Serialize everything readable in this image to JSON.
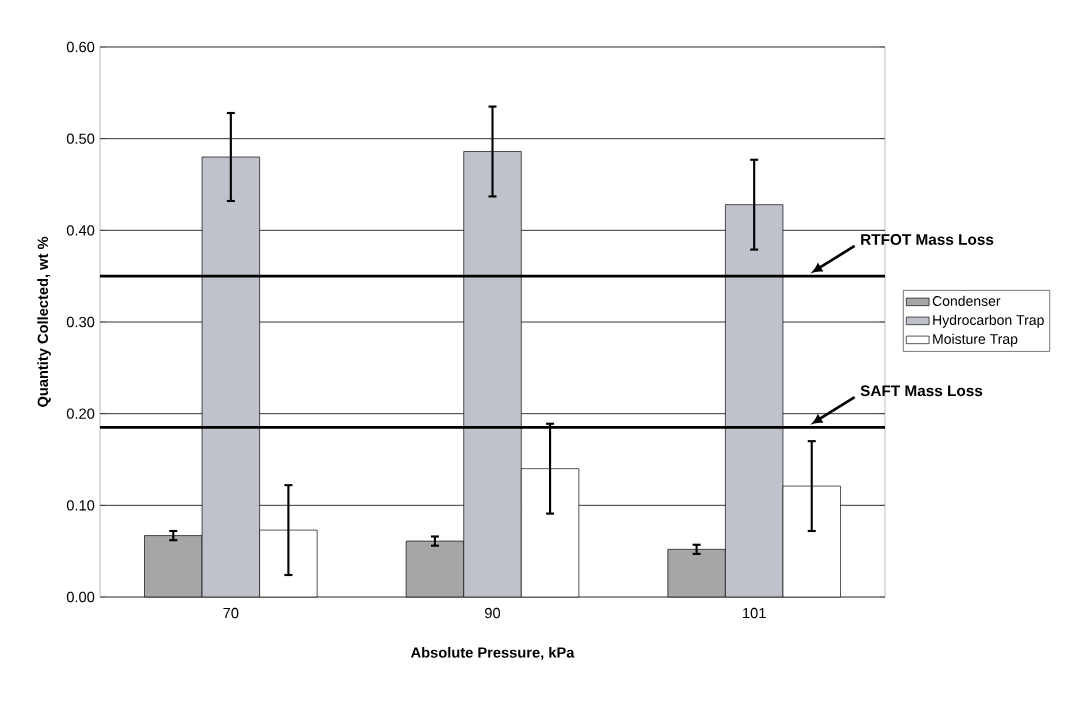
{
  "chart_data": {
    "type": "bar",
    "xlabel": "Absolute Pressure, kPa",
    "ylabel": "Quantity  Collected, wt %",
    "categories": [
      "70",
      "90",
      "101"
    ],
    "series": [
      {
        "name": "Condenser",
        "color": "#a6a6a6",
        "values": [
          0.067,
          0.061,
          0.052
        ],
        "errors": [
          0.005,
          0.005,
          0.005
        ]
      },
      {
        "name": "Hydrocarbon Trap",
        "color": "#bfc2ca",
        "values": [
          0.48,
          0.486,
          0.428
        ],
        "errors": [
          0.048,
          0.049,
          0.049
        ]
      },
      {
        "name": "Moisture Trap",
        "color": "#ffffff",
        "values": [
          0.073,
          0.14,
          0.121
        ],
        "errors": [
          0.049,
          0.049,
          0.049
        ]
      }
    ],
    "ylim": [
      0,
      0.6
    ],
    "yticks": [
      {
        "value": 0,
        "label": "0.00"
      },
      {
        "value": 0.1,
        "label": "0.10"
      },
      {
        "value": 0.2,
        "label": "0.20"
      },
      {
        "value": 0.3,
        "label": "0.30"
      },
      {
        "value": 0.4,
        "label": "0.40"
      },
      {
        "value": 0.5,
        "label": "0.50"
      },
      {
        "value": 0.6,
        "label": "0.60"
      }
    ],
    "ref_lines": [
      {
        "axis": "y",
        "value": 0.35,
        "label": "RTFOT Mass Loss",
        "color": "#000000"
      },
      {
        "axis": "y",
        "value": 0.185,
        "label": "SAFT Mass Loss",
        "color": "#000000"
      }
    ],
    "grid": "y",
    "legend": "right"
  }
}
